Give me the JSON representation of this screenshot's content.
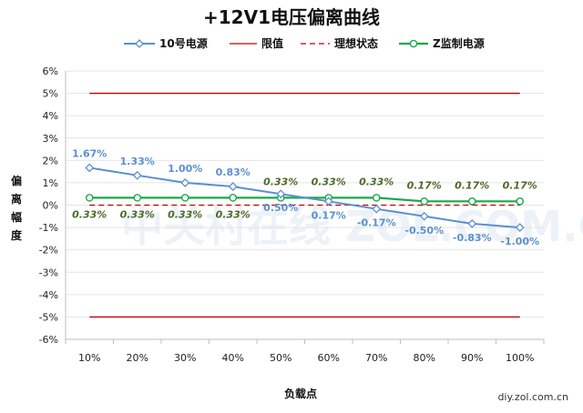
{
  "chart_data": {
    "type": "line",
    "title": "+12V1电压偏离曲线",
    "xlabel": "负载点",
    "ylabel": "偏离幅度",
    "categories": [
      "10%",
      "20%",
      "30%",
      "40%",
      "50%",
      "60%",
      "70%",
      "80%",
      "90%",
      "100%"
    ],
    "ylim": [
      -6,
      6
    ],
    "yticks": [
      "-6%",
      "-5%",
      "-4%",
      "-3%",
      "-2%",
      "-1%",
      "0%",
      "1%",
      "2%",
      "3%",
      "4%",
      "5%",
      "6%"
    ],
    "grid": "horizontal",
    "legend_position": "top",
    "series": [
      {
        "name": "10号电源",
        "color": "#5b8fd0",
        "marker": "diamond",
        "values": [
          1.67,
          1.33,
          1.0,
          0.83,
          0.5,
          0.17,
          -0.17,
          -0.5,
          -0.83,
          -1.0
        ],
        "labels": [
          "1.67%",
          "1.33%",
          "1.00%",
          "0.83%",
          "0.50%",
          "0.17%",
          "-0.17%",
          "-0.50%",
          "-0.83%",
          "-1.00%"
        ]
      },
      {
        "name": "限值",
        "color": "#c00000",
        "style": "solid",
        "values_upper": [
          5,
          5,
          5,
          5,
          5,
          5,
          5,
          5,
          5,
          5
        ],
        "values_lower": [
          -5,
          -5,
          -5,
          -5,
          -5,
          -5,
          -5,
          -5,
          -5,
          -5
        ]
      },
      {
        "name": "理想状态",
        "color": "#c00000",
        "style": "dashed",
        "values": [
          0,
          0,
          0,
          0,
          0,
          0,
          0,
          0,
          0,
          0
        ]
      },
      {
        "name": "Z监制电源",
        "color": "#1aa84a",
        "marker": "circle",
        "label_color": "#4d6b2a",
        "values": [
          0.33,
          0.33,
          0.33,
          0.33,
          0.33,
          0.33,
          0.33,
          0.17,
          0.17,
          0.17
        ],
        "labels": [
          "0.33%",
          "0.33%",
          "0.33%",
          "0.33%",
          "0.33%",
          "0.33%",
          "0.33%",
          "0.17%",
          "0.17%",
          "0.17%"
        ]
      }
    ]
  },
  "watermark": "中关村在线 ZOL.COM.CN",
  "credit": "diy.zol.com.cn"
}
